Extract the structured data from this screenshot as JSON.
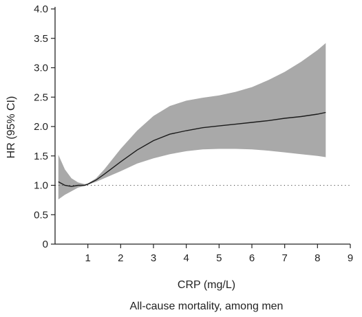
{
  "chart_data": {
    "type": "line",
    "xlabel": "CRP (mg/L)",
    "ylabel": "HR (95% CI)",
    "caption": "All-cause mortality, among men",
    "xlim": [
      0,
      9
    ],
    "ylim": [
      0,
      4.0
    ],
    "x_ticks": [
      "1",
      "2",
      "3",
      "4",
      "5",
      "6",
      "7",
      "8",
      "9"
    ],
    "y_ticks": [
      "0",
      "0.5",
      "1.0",
      "1.5",
      "2.0",
      "2.5",
      "3.0",
      "3.5",
      "4.0"
    ],
    "reference_line": 1.0,
    "series": [
      {
        "x": [
          0.1,
          0.3,
          0.5,
          0.7,
          0.9,
          1.0,
          1.25,
          1.5,
          2.0,
          2.5,
          3.0,
          3.5,
          4.0,
          4.5,
          5.0,
          5.5,
          6.0,
          6.5,
          7.0,
          7.5,
          8.0,
          8.25
        ],
        "y": [
          1.06,
          1.0,
          0.98,
          1.0,
          1.0,
          1.02,
          1.09,
          1.19,
          1.4,
          1.6,
          1.76,
          1.87,
          1.93,
          1.98,
          2.01,
          2.04,
          2.07,
          2.1,
          2.14,
          2.17,
          2.21,
          2.24
        ],
        "lower": [
          0.76,
          0.84,
          0.9,
          0.96,
          0.99,
          1.01,
          1.06,
          1.12,
          1.24,
          1.37,
          1.46,
          1.53,
          1.58,
          1.61,
          1.62,
          1.62,
          1.61,
          1.59,
          1.56,
          1.53,
          1.5,
          1.48
        ],
        "upper": [
          1.52,
          1.27,
          1.12,
          1.05,
          1.02,
          1.03,
          1.12,
          1.27,
          1.62,
          1.93,
          2.18,
          2.35,
          2.44,
          2.49,
          2.53,
          2.59,
          2.67,
          2.79,
          2.93,
          3.1,
          3.3,
          3.42
        ]
      }
    ],
    "colors": {
      "band": "#a9a9a9",
      "line": "#1a1a1a",
      "axis": "#222222",
      "reference": "#444444"
    },
    "grid": false
  }
}
